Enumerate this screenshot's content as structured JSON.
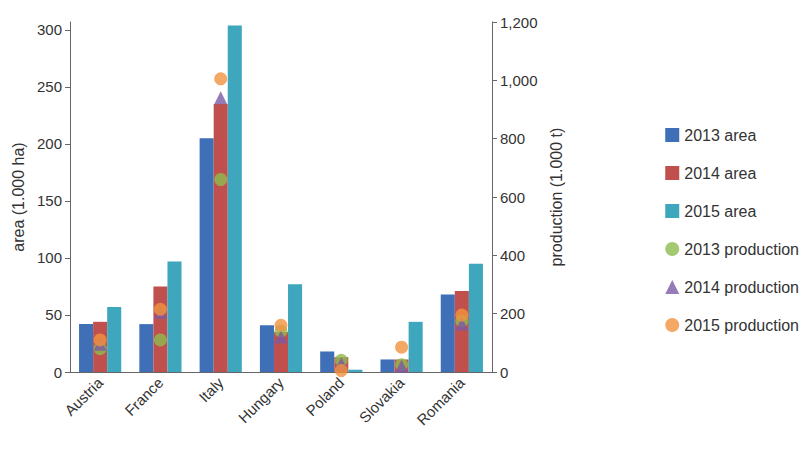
{
  "chart_data": {
    "type": "bar",
    "categories": [
      "Austria",
      "France",
      "Italy",
      "Hungary",
      "Poland",
      "Slovakia",
      "Romania"
    ],
    "y_label": "area (1.000 ha)",
    "y2_label": "production (1.000 t)",
    "ylim": [
      0,
      307
    ],
    "yticks": [
      0,
      50,
      100,
      150,
      200,
      250,
      300
    ],
    "y2lim": [
      0,
      1200
    ],
    "y2ticks": [
      0,
      200,
      400,
      600,
      800,
      1000,
      1200
    ],
    "grid": false,
    "legend": "right",
    "series": [
      {
        "name": "2013 area",
        "type": "bar",
        "color": "#3f6fb6",
        "values": [
          42,
          42,
          205,
          41,
          18,
          11,
          68
        ]
      },
      {
        "name": "2014 area",
        "type": "bar",
        "color": "#c0504d",
        "values": [
          44,
          75,
          235,
          35,
          13,
          11,
          71
        ]
      },
      {
        "name": "2015 area",
        "type": "bar",
        "color": "#3ea7bd",
        "values": [
          57,
          97,
          304,
          77,
          2,
          44,
          95
        ]
      },
      {
        "name": "2013 production",
        "type": "scatter",
        "marker": "circle",
        "axis": "y2",
        "color": "#8dbb4f",
        "values": [
          80,
          110,
          660,
          140,
          40,
          25,
          175
        ]
      },
      {
        "name": "2014 production",
        "type": "scatter",
        "marker": "triangle",
        "axis": "y2",
        "color": "#7a5aa6",
        "values": [
          95,
          205,
          940,
          120,
          28,
          20,
          165
        ]
      },
      {
        "name": "2015 production",
        "type": "scatter",
        "marker": "circle",
        "axis": "y2",
        "color": "#f0923f",
        "values": [
          110,
          215,
          1005,
          160,
          5,
          85,
          195
        ]
      }
    ]
  }
}
